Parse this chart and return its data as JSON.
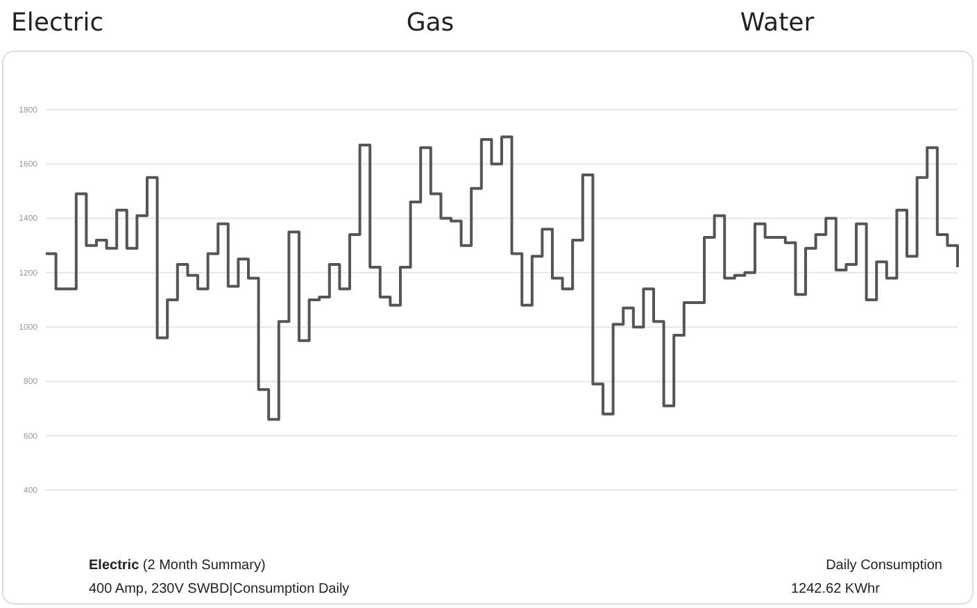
{
  "chart_data": {
    "type": "step",
    "categories": [
      null,
      null,
      null,
      null,
      null,
      null,
      null,
      null,
      null,
      null,
      null,
      null,
      null,
      null,
      null,
      null,
      null,
      null,
      null,
      null,
      null,
      null,
      null,
      null,
      null,
      null,
      null,
      null,
      null,
      null,
      null,
      null,
      null,
      null,
      null,
      null,
      null,
      null,
      null,
      null,
      null,
      null,
      null,
      null,
      null,
      null,
      null,
      null,
      null,
      null,
      null,
      null,
      null,
      null,
      null,
      null,
      null,
      null,
      null,
      null,
      null,
      null,
      null,
      null,
      null,
      null,
      null,
      null,
      null,
      null,
      null,
      null,
      null,
      null,
      null,
      null,
      null,
      null,
      null,
      null,
      null,
      null,
      null,
      null,
      null,
      null,
      null,
      null,
      null,
      null,
      null
    ],
    "series": [
      {
        "color": "#555555",
        "values": [
          1270,
          1140,
          1140,
          1490,
          1300,
          1320,
          1290,
          1430,
          1290,
          1410,
          1550,
          960,
          1100,
          1230,
          1190,
          1140,
          1270,
          1380,
          1150,
          1250,
          1180,
          770,
          660,
          1020,
          1350,
          950,
          1100,
          1110,
          1230,
          1140,
          1340,
          1670,
          1220,
          1110,
          1080,
          1220,
          1460,
          1660,
          1490,
          1400,
          1390,
          1300,
          1510,
          1690,
          1600,
          1700,
          1270,
          1080,
          1260,
          1360,
          1180,
          1140,
          1320,
          1560,
          790,
          680,
          1010,
          1070,
          1000,
          1140,
          1020,
          710,
          970,
          1090,
          1090,
          1330,
          1410,
          1180,
          1190,
          1200,
          1380,
          1330,
          1330,
          1310,
          1120,
          1290,
          1340,
          1400,
          1210,
          1230,
          1380,
          1100,
          1240,
          1180,
          1430,
          1260,
          1550,
          1660,
          1340,
          1300,
          1220
        ]
      }
    ],
    "ylim": [
      400,
      1800
    ],
    "yticks": [
      400,
      600,
      800,
      1000,
      1200,
      1400,
      1600,
      1800
    ],
    "grid": "y",
    "tick_labels": "y",
    "marker": "none",
    "line_style": "solid",
    "annotations": [
      "Electric",
      "Gas",
      "Water",
      "Electric (2 Month Summary)",
      "400 Amp, 230V SWBD|Consumption Daily",
      "Daily Consumption",
      "1242.62 KWhr"
    ]
  }
}
